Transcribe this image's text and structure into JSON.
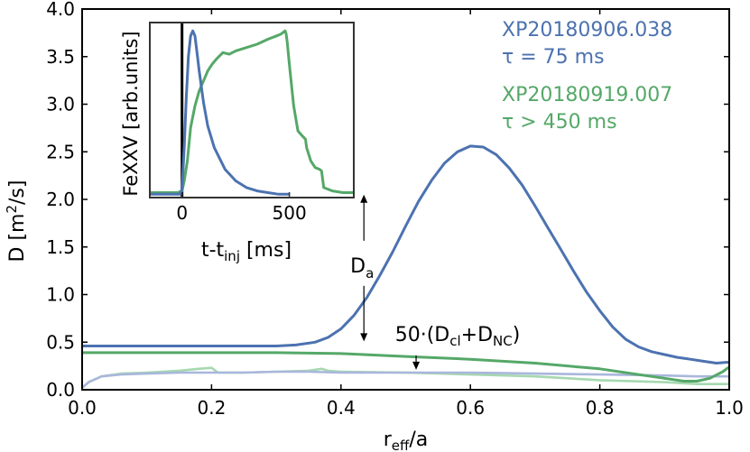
{
  "chart_data": [
    {
      "id": "main",
      "type": "line",
      "xlabel": "r",
      "xlabel_sub": "eff",
      "xlabel_suffix": "/a",
      "ylabel_prefix": "D [m",
      "ylabel_sup": "2",
      "ylabel_suffix": "/s]",
      "xlim": [
        0.0,
        1.0
      ],
      "ylim": [
        0.0,
        4.0
      ],
      "xticks": [
        0.0,
        0.2,
        0.4,
        0.6,
        0.8,
        1.0
      ],
      "xtick_labels": [
        "0.0",
        "0.2",
        "0.4",
        "0.6",
        "0.8",
        "1.0"
      ],
      "yticks": [
        0.0,
        0.5,
        1.0,
        1.5,
        2.0,
        2.5,
        3.0,
        3.5,
        4.0
      ],
      "ytick_labels": [
        "0.0",
        "0.5",
        "1.0",
        "1.5",
        "2.0",
        "2.5",
        "3.0",
        "3.5",
        "4.0"
      ],
      "series": [
        {
          "name": "XP20180906.038 D",
          "color": "#4c72b0",
          "x": [
            0.0,
            0.1,
            0.2,
            0.3,
            0.33,
            0.36,
            0.38,
            0.4,
            0.42,
            0.44,
            0.46,
            0.48,
            0.5,
            0.52,
            0.54,
            0.56,
            0.58,
            0.6,
            0.62,
            0.64,
            0.66,
            0.68,
            0.7,
            0.72,
            0.74,
            0.76,
            0.78,
            0.8,
            0.82,
            0.84,
            0.86,
            0.88,
            0.9,
            0.92,
            0.94,
            0.96,
            0.98,
            1.0
          ],
          "y": [
            0.46,
            0.46,
            0.46,
            0.46,
            0.47,
            0.5,
            0.55,
            0.64,
            0.78,
            0.97,
            1.2,
            1.45,
            1.72,
            1.98,
            2.2,
            2.38,
            2.5,
            2.56,
            2.55,
            2.47,
            2.33,
            2.15,
            1.93,
            1.7,
            1.47,
            1.24,
            1.02,
            0.83,
            0.66,
            0.53,
            0.45,
            0.4,
            0.37,
            0.34,
            0.32,
            0.3,
            0.28,
            0.29
          ]
        },
        {
          "name": "XP20180919.007 D",
          "color": "#55a868",
          "x": [
            0.0,
            0.1,
            0.2,
            0.3,
            0.4,
            0.5,
            0.6,
            0.7,
            0.8,
            0.85,
            0.9,
            0.93,
            0.95,
            0.97,
            0.99,
            1.0
          ],
          "y": [
            0.39,
            0.39,
            0.39,
            0.39,
            0.38,
            0.35,
            0.32,
            0.28,
            0.22,
            0.17,
            0.12,
            0.09,
            0.09,
            0.12,
            0.19,
            0.24
          ]
        },
        {
          "name": "XP20180906.038 50·(Dcl+DNC)",
          "color": "#a9b7dc",
          "x": [
            0.0,
            0.01,
            0.03,
            0.06,
            0.1,
            0.15,
            0.2,
            0.25,
            0.3,
            0.35,
            0.4,
            0.5,
            0.6,
            0.7,
            0.8,
            0.9,
            0.95,
            1.0
          ],
          "y": [
            0.02,
            0.08,
            0.14,
            0.16,
            0.17,
            0.18,
            0.18,
            0.18,
            0.19,
            0.19,
            0.18,
            0.18,
            0.18,
            0.17,
            0.16,
            0.15,
            0.14,
            0.14
          ]
        },
        {
          "name": "XP20180919.007 50·(Dcl+DNC)",
          "color": "#a6d8b0",
          "x": [
            0.0,
            0.01,
            0.03,
            0.06,
            0.1,
            0.15,
            0.18,
            0.2,
            0.21,
            0.25,
            0.3,
            0.35,
            0.37,
            0.38,
            0.4,
            0.5,
            0.6,
            0.7,
            0.8,
            0.9,
            0.95,
            1.0
          ],
          "y": [
            0.02,
            0.08,
            0.14,
            0.17,
            0.18,
            0.2,
            0.22,
            0.23,
            0.18,
            0.18,
            0.19,
            0.2,
            0.22,
            0.2,
            0.19,
            0.18,
            0.16,
            0.14,
            0.1,
            0.08,
            0.06,
            0.06
          ]
        }
      ],
      "annotations": {
        "series1_id": "XP20180906.038",
        "series1_tau": "τ = 75 ms",
        "series2_id": "XP20180919.007",
        "series2_tau": "τ > 450 ms",
        "da_label": "D",
        "da_label_sub": "a",
        "da_arrow_x": 0.6,
        "da_arrow_top": 2.05,
        "da_arrow_bottom": 0.47,
        "da_label_y": 1.3,
        "cl_label_prefix": "50·(D",
        "cl_label_sub1": "cl",
        "cl_label_mid": "+D",
        "cl_label_sub2": "NC",
        "cl_label_suffix": ")",
        "cl_arrow_x": 0.65,
        "cl_arrow_top": 0.36,
        "cl_arrow_bottom": 0.21,
        "cl_label_x": 0.65,
        "cl_label_y": 0.58
      }
    },
    {
      "id": "inset",
      "type": "line",
      "xlabel": "t-t",
      "xlabel_sub": "inj",
      "xlabel_suffix": " [ms]",
      "ylabel": "FeXXV [arb.units]",
      "xlim": [
        -150,
        800
      ],
      "ylim": [
        0.0,
        1.05
      ],
      "xticks": [
        0,
        500
      ],
      "xtick_labels": [
        "0",
        "500"
      ],
      "vline_x": 0,
      "vline_color": "#000000",
      "series": [
        {
          "name": "XP20180906.038 FeXXV",
          "color": "#4c72b0",
          "x": [
            -150,
            -10,
            0,
            10,
            20,
            30,
            40,
            50,
            60,
            70,
            80,
            100,
            120,
            150,
            200,
            250,
            300,
            350,
            400,
            450,
            500
          ],
          "y": [
            0.02,
            0.02,
            0.05,
            0.3,
            0.6,
            0.85,
            0.97,
            1.0,
            0.97,
            0.87,
            0.76,
            0.57,
            0.43,
            0.3,
            0.17,
            0.1,
            0.06,
            0.04,
            0.03,
            0.02,
            0.02
          ]
        },
        {
          "name": "XP20180919.007 FeXXV",
          "color": "#55a868",
          "x": [
            -150,
            -20,
            0,
            10,
            25,
            40,
            60,
            80,
            100,
            120,
            140,
            160,
            190,
            220,
            250,
            300,
            350,
            400,
            440,
            460,
            470,
            480,
            485,
            490,
            500,
            520,
            540,
            560,
            575,
            580,
            600,
            620,
            640,
            650,
            660,
            700,
            750,
            800
          ],
          "y": [
            0.03,
            0.03,
            0.04,
            0.1,
            0.22,
            0.42,
            0.55,
            0.64,
            0.7,
            0.76,
            0.8,
            0.83,
            0.87,
            0.86,
            0.88,
            0.9,
            0.92,
            0.95,
            0.97,
            0.98,
            0.99,
            1.0,
            0.98,
            0.93,
            0.8,
            0.55,
            0.4,
            0.37,
            0.35,
            0.3,
            0.22,
            0.18,
            0.17,
            0.16,
            0.06,
            0.04,
            0.03,
            0.03
          ]
        }
      ]
    }
  ]
}
